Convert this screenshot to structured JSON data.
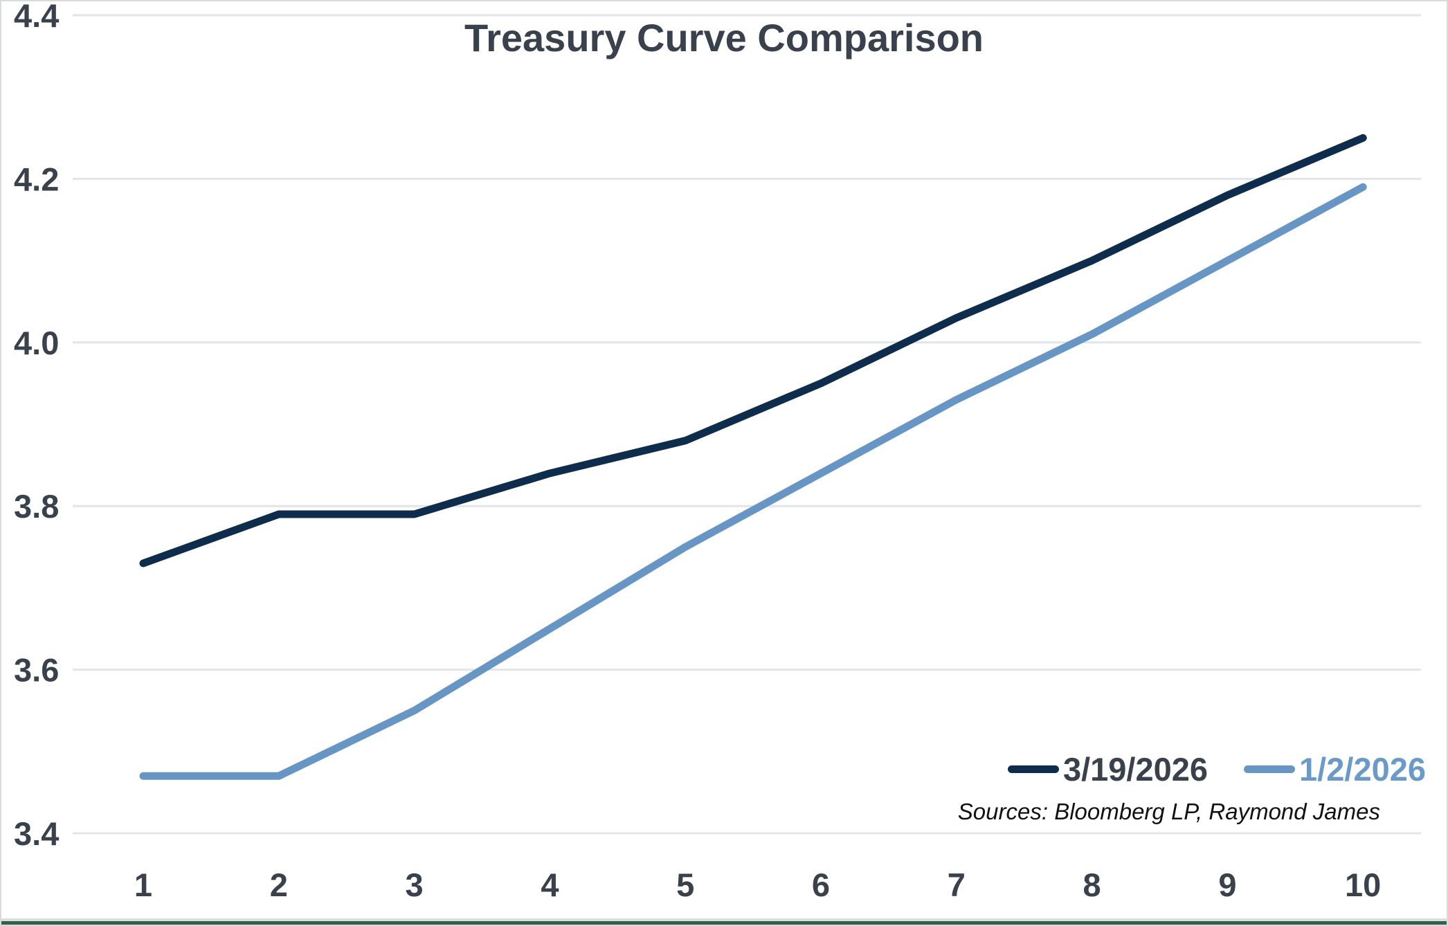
{
  "title": "Treasury Curve Comparison",
  "source_note": "Sources: Bloomberg LP, Raymond James",
  "legend": {
    "items": [
      {
        "label": "3/19/2026",
        "color": "#0e2c4b",
        "text_color": "#39424c"
      },
      {
        "label": "1/2/2026",
        "color": "#6796c5",
        "text_color": "#6b9ac9"
      }
    ]
  },
  "colors": {
    "title_text": "#39424c",
    "axis_text": "#39424c",
    "gridline": "#e2e6e9",
    "frame_border": "#d7dbde",
    "bottom_accent_green": "#33604a",
    "series_dark": "#0e2c4b",
    "series_light": "#6796c5",
    "background": "#ffffff"
  },
  "chart_data": {
    "type": "line",
    "title": "Treasury Curve Comparison",
    "xlabel": "",
    "ylabel": "",
    "x": [
      1,
      2,
      3,
      4,
      5,
      6,
      7,
      8,
      9,
      10
    ],
    "x_tick_labels": [
      "1",
      "2",
      "3",
      "4",
      "5",
      "6",
      "7",
      "8",
      "9",
      "10"
    ],
    "series": [
      {
        "name": "3/19/2026",
        "color": "#0e2c4b",
        "values": [
          3.73,
          3.79,
          3.79,
          3.84,
          3.88,
          3.95,
          4.03,
          4.1,
          4.18,
          4.25
        ]
      },
      {
        "name": "1/2/2026",
        "color": "#6796c5",
        "values": [
          3.47,
          3.47,
          3.55,
          3.65,
          3.75,
          3.84,
          3.93,
          4.01,
          4.1,
          4.19
        ]
      }
    ],
    "ylim": [
      3.4,
      4.4
    ],
    "yticks": [
      4.4,
      4.2,
      4.0,
      3.8,
      3.6,
      3.4
    ],
    "ytick_labels": [
      "4.4",
      "4.2",
      "4.0",
      "3.8",
      "3.6",
      "3.4"
    ],
    "grid": true,
    "gridlines": "horizontal",
    "legend_position": "bottom-right"
  }
}
